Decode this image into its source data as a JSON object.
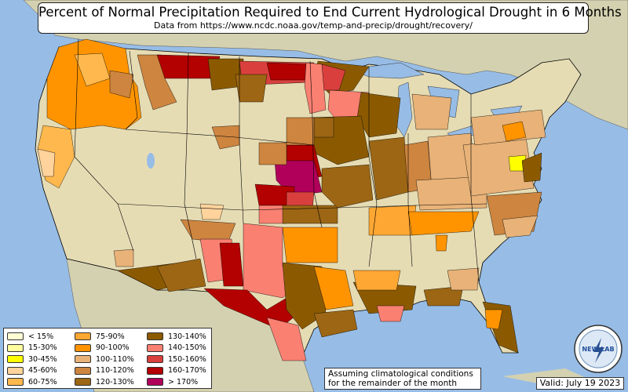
{
  "title": "Percent of Normal Precipitation Required to End Current Hydrological Drought in 6 Months",
  "subtitle": "Data from https://www.ncdc.noaa.gov/temp-and-precip/drought/recovery/",
  "legend": [
    {
      "label": "< 15%",
      "color": "#ffffd4"
    },
    {
      "label": "15-30%",
      "color": "#ffffa0"
    },
    {
      "label": "30-45%",
      "color": "#ffff00"
    },
    {
      "label": "45-60%",
      "color": "#ffd39b"
    },
    {
      "label": "60-75%",
      "color": "#ffb84d"
    },
    {
      "label": "75-90%",
      "color": "#ffa733"
    },
    {
      "label": "90-100%",
      "color": "#ff9400"
    },
    {
      "label": "100-110%",
      "color": "#e8b278"
    },
    {
      "label": "110-120%",
      "color": "#cd853f"
    },
    {
      "label": "120-130%",
      "color": "#9c6614"
    },
    {
      "label": "130-140%",
      "color": "#8b5a00"
    },
    {
      "label": "140-150%",
      "color": "#fa8072"
    },
    {
      "label": "150-160%",
      "color": "#d9403d"
    },
    {
      "label": "160-170%",
      "color": "#b30000"
    },
    {
      "label": "> 170%",
      "color": "#b0005a"
    }
  ],
  "note": {
    "line1": "Assuming climatological conditions",
    "line2": "for the remainder of the month"
  },
  "valid": "Valid: July 19 2023",
  "logo_text": "NEW LAB",
  "colors": {
    "ocean": "#97bde6",
    "land": "#e6dcb4",
    "canada_mexico": "#d4d1b0",
    "borders": "#000000"
  }
}
